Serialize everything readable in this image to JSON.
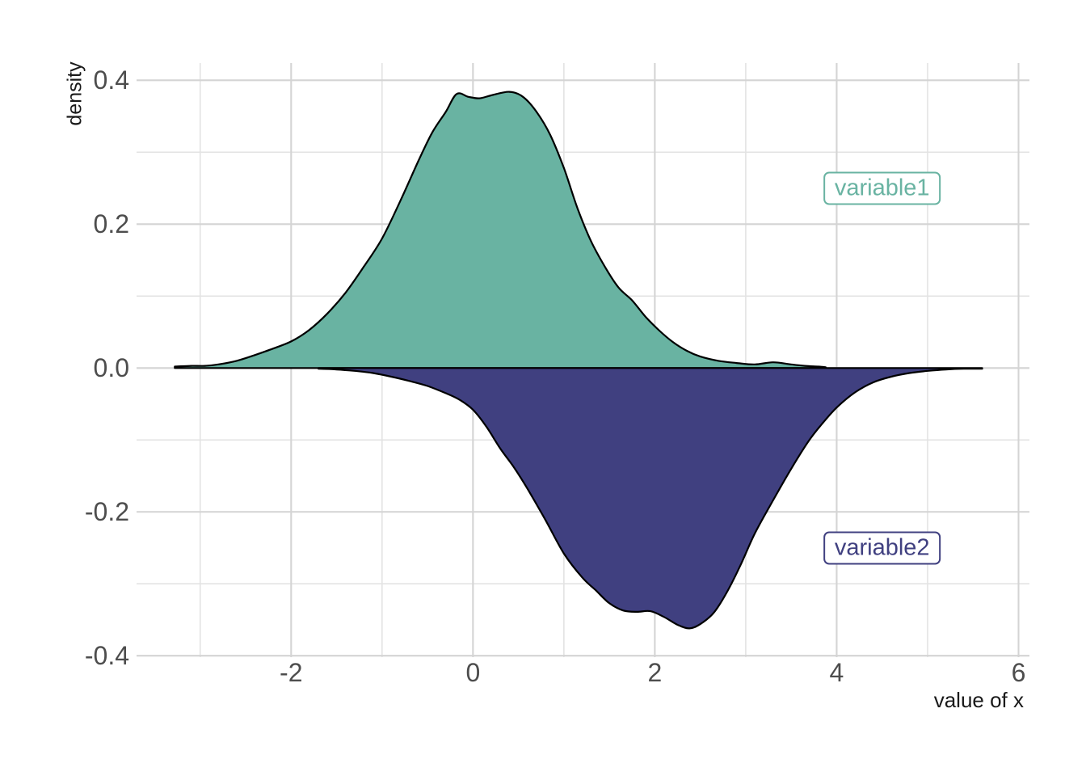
{
  "chart_data": {
    "type": "area",
    "subtype": "mirror-density",
    "xlabel": "value of x",
    "ylabel": "density",
    "xlim": [
      -3.7,
      6.12
    ],
    "ylim": [
      -0.402,
      0.424
    ],
    "grid": true,
    "background": "#ffffff",
    "x_ticks": [
      {
        "v": -2,
        "label": "-2"
      },
      {
        "v": 0,
        "label": "0"
      },
      {
        "v": 2,
        "label": "2"
      },
      {
        "v": 4,
        "label": "4"
      },
      {
        "v": 6,
        "label": "6"
      }
    ],
    "x_minor_ticks": [
      -3,
      -1,
      1,
      3,
      5
    ],
    "y_ticks": [
      {
        "v": 0.4,
        "label": "0.4"
      },
      {
        "v": 0.2,
        "label": "0.2"
      },
      {
        "v": 0.0,
        "label": "0.0"
      },
      {
        "v": -0.2,
        "label": "-0.2"
      },
      {
        "v": -0.4,
        "label": "-0.4"
      }
    ],
    "y_minor_ticks": [
      0.3,
      0.1,
      -0.1,
      -0.3
    ],
    "series": [
      {
        "name": "variable1",
        "fill": "#69b3a2",
        "stroke": "#000000",
        "direction": "up",
        "points": [
          [
            -3.28,
            0.002
          ],
          [
            -3.1,
            0.003
          ],
          [
            -2.95,
            0.003
          ],
          [
            -2.8,
            0.005
          ],
          [
            -2.6,
            0.01
          ],
          [
            -2.4,
            0.018
          ],
          [
            -2.2,
            0.027
          ],
          [
            -2.0,
            0.037
          ],
          [
            -1.8,
            0.053
          ],
          [
            -1.6,
            0.076
          ],
          [
            -1.4,
            0.105
          ],
          [
            -1.2,
            0.141
          ],
          [
            -1.0,
            0.18
          ],
          [
            -0.8,
            0.232
          ],
          [
            -0.6,
            0.288
          ],
          [
            -0.45,
            0.327
          ],
          [
            -0.3,
            0.356
          ],
          [
            -0.18,
            0.381
          ],
          [
            -0.05,
            0.377
          ],
          [
            0.07,
            0.375
          ],
          [
            0.2,
            0.379
          ],
          [
            0.4,
            0.384
          ],
          [
            0.55,
            0.377
          ],
          [
            0.7,
            0.356
          ],
          [
            0.85,
            0.324
          ],
          [
            1.0,
            0.278
          ],
          [
            1.15,
            0.222
          ],
          [
            1.3,
            0.176
          ],
          [
            1.45,
            0.141
          ],
          [
            1.6,
            0.112
          ],
          [
            1.75,
            0.094
          ],
          [
            1.9,
            0.071
          ],
          [
            2.05,
            0.052
          ],
          [
            2.2,
            0.036
          ],
          [
            2.35,
            0.024
          ],
          [
            2.5,
            0.016
          ],
          [
            2.7,
            0.01
          ],
          [
            2.9,
            0.007
          ],
          [
            3.1,
            0.005
          ],
          [
            3.3,
            0.008
          ],
          [
            3.5,
            0.005
          ],
          [
            3.65,
            0.003
          ],
          [
            3.8,
            0.002
          ],
          [
            3.88,
            0.001
          ]
        ]
      },
      {
        "name": "variable2",
        "fill": "#404080",
        "stroke": "#000000",
        "direction": "down",
        "points": [
          [
            -1.7,
            -0.001
          ],
          [
            -1.5,
            -0.002
          ],
          [
            -1.3,
            -0.004
          ],
          [
            -1.1,
            -0.007
          ],
          [
            -0.9,
            -0.012
          ],
          [
            -0.7,
            -0.018
          ],
          [
            -0.5,
            -0.025
          ],
          [
            -0.3,
            -0.035
          ],
          [
            -0.15,
            -0.044
          ],
          [
            0.0,
            -0.058
          ],
          [
            0.15,
            -0.082
          ],
          [
            0.3,
            -0.112
          ],
          [
            0.45,
            -0.138
          ],
          [
            0.6,
            -0.168
          ],
          [
            0.8,
            -0.212
          ],
          [
            1.0,
            -0.258
          ],
          [
            1.2,
            -0.291
          ],
          [
            1.35,
            -0.309
          ],
          [
            1.5,
            -0.327
          ],
          [
            1.65,
            -0.337
          ],
          [
            1.8,
            -0.339
          ],
          [
            1.95,
            -0.338
          ],
          [
            2.1,
            -0.346
          ],
          [
            2.25,
            -0.357
          ],
          [
            2.38,
            -0.362
          ],
          [
            2.5,
            -0.356
          ],
          [
            2.65,
            -0.34
          ],
          [
            2.8,
            -0.31
          ],
          [
            2.95,
            -0.272
          ],
          [
            3.1,
            -0.23
          ],
          [
            3.3,
            -0.184
          ],
          [
            3.5,
            -0.14
          ],
          [
            3.7,
            -0.1
          ],
          [
            3.85,
            -0.076
          ],
          [
            4.0,
            -0.055
          ],
          [
            4.2,
            -0.034
          ],
          [
            4.4,
            -0.02
          ],
          [
            4.6,
            -0.012
          ],
          [
            4.8,
            -0.007
          ],
          [
            5.0,
            -0.004
          ],
          [
            5.2,
            -0.002
          ],
          [
            5.4,
            -0.001
          ],
          [
            5.6,
            -0.001
          ]
        ]
      }
    ],
    "annotations": [
      {
        "label": "variable1",
        "x": 4.5,
        "y": 0.25,
        "color": "#69b3a2"
      },
      {
        "label": "variable2",
        "x": 4.5,
        "y": -0.25,
        "color": "#404080"
      }
    ]
  }
}
